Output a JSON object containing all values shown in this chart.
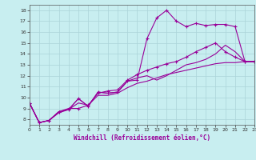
{
  "xlabel": "Windchill (Refroidissement éolien,°C)",
  "bg_color": "#c8eef0",
  "line_color": "#990099",
  "grid_color": "#aad4d8",
  "xlim": [
    0,
    23
  ],
  "ylim": [
    7.5,
    18.5
  ],
  "xticks": [
    0,
    1,
    2,
    3,
    4,
    5,
    6,
    7,
    8,
    9,
    10,
    11,
    12,
    13,
    14,
    15,
    16,
    17,
    18,
    19,
    20,
    21,
    22,
    23
  ],
  "yticks": [
    8,
    9,
    10,
    11,
    12,
    13,
    14,
    15,
    16,
    17,
    18
  ],
  "series": [
    {
      "x": [
        0,
        1,
        2,
        3,
        4,
        5,
        6,
        7,
        8,
        9,
        10,
        11,
        12,
        13,
        14,
        15,
        16,
        17,
        18,
        19,
        20,
        21,
        22,
        23
      ],
      "y": [
        9.5,
        7.7,
        7.9,
        8.7,
        8.9,
        9.9,
        9.2,
        10.5,
        10.4,
        10.5,
        11.5,
        11.6,
        15.4,
        17.3,
        18.0,
        17.0,
        16.5,
        16.8,
        16.6,
        16.7,
        16.7,
        16.5,
        13.3,
        13.3
      ],
      "marker": "+"
    },
    {
      "x": [
        0,
        1,
        2,
        3,
        4,
        5,
        6,
        7,
        8,
        9,
        10,
        11,
        12,
        13,
        14,
        15,
        16,
        17,
        18,
        19,
        20,
        21,
        22,
        23
      ],
      "y": [
        9.5,
        7.7,
        7.9,
        8.7,
        8.9,
        9.9,
        9.2,
        10.5,
        10.4,
        10.5,
        11.5,
        11.8,
        12.0,
        11.6,
        12.0,
        12.5,
        13.0,
        13.2,
        13.5,
        14.0,
        14.8,
        14.2,
        13.3,
        13.3
      ],
      "marker": null
    },
    {
      "x": [
        0,
        1,
        2,
        3,
        4,
        5,
        6,
        7,
        8,
        9,
        10,
        11,
        12,
        13,
        14,
        15,
        16,
        17,
        18,
        19,
        20,
        21,
        22,
        23
      ],
      "y": [
        9.5,
        7.7,
        7.9,
        8.6,
        8.9,
        9.5,
        9.3,
        10.2,
        10.2,
        10.4,
        10.9,
        11.3,
        11.5,
        11.8,
        12.1,
        12.3,
        12.5,
        12.7,
        12.9,
        13.1,
        13.2,
        13.2,
        13.3,
        13.3
      ],
      "marker": null
    },
    {
      "x": [
        0,
        1,
        2,
        3,
        4,
        5,
        6,
        7,
        8,
        9,
        10,
        11,
        12,
        13,
        14,
        15,
        16,
        17,
        18,
        19,
        20,
        21,
        22,
        23
      ],
      "y": [
        9.5,
        7.7,
        7.9,
        8.7,
        9.0,
        9.0,
        9.3,
        10.4,
        10.6,
        10.7,
        11.6,
        12.1,
        12.5,
        12.8,
        13.1,
        13.3,
        13.7,
        14.2,
        14.6,
        15.0,
        14.2,
        13.7,
        13.3,
        13.3
      ],
      "marker": "+"
    }
  ]
}
